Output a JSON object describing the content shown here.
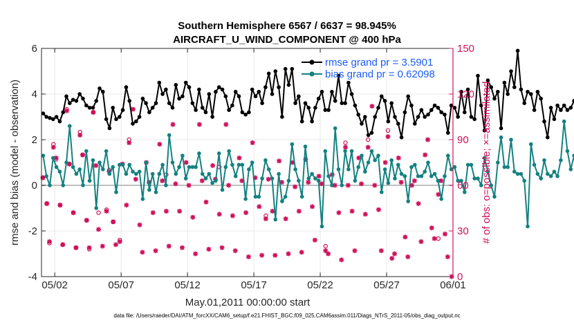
{
  "chart_data": {
    "type": "line",
    "title_line1": "Southern Hemisphere 6567 / 6637 = 98.945%",
    "title_line2": "AIRCRAFT_U_WIND_COMPONENT @ 400 hPa",
    "ylabel": "rmse and bias (model - observation)",
    "y2label": "# of obs: o=possible; ×=assimilated",
    "xlabel": "May.01,2011 00:00:00 start",
    "footnote": "data file: /Users/raeder/DAI/ATM_forcXX/CAM6_setup/f.e21.FHIST_BGC.f09_025.CAM6assim.011/Diags_NTrS_2011-05/obs_diag_output.nc",
    "xlim": [
      0,
      31
    ],
    "ylim": [
      -4,
      6
    ],
    "y2lim": [
      0,
      150
    ],
    "xticks": [
      {
        "day": 1,
        "label": "05/02"
      },
      {
        "day": 6,
        "label": "05/07"
      },
      {
        "day": 11,
        "label": "05/12"
      },
      {
        "day": 16,
        "label": "05/17"
      },
      {
        "day": 21,
        "label": "05/22"
      },
      {
        "day": 26,
        "label": "05/27"
      },
      {
        "day": 31,
        "label": "06/01"
      }
    ],
    "yticks": [
      {
        "value": -4,
        "label": "-4"
      },
      {
        "value": -2,
        "label": "-2"
      },
      {
        "value": 0,
        "label": "0"
      },
      {
        "value": 2,
        "label": "2"
      },
      {
        "value": 4,
        "label": "4"
      },
      {
        "value": 6,
        "label": "6"
      }
    ],
    "y2ticks": [
      {
        "value": 0,
        "label": "0"
      },
      {
        "value": 30,
        "label": "30"
      },
      {
        "value": 60,
        "label": "60"
      },
      {
        "value": 90,
        "label": "90"
      },
      {
        "value": 120,
        "label": "120"
      },
      {
        "value": 150,
        "label": "150"
      }
    ],
    "time_step_days": 0.25,
    "time_start_day": 0.125,
    "series": [
      {
        "name": "rmse",
        "legend": "rmse grand pr = 3.5901",
        "color": "#000000",
        "values": [
          3.15,
          3.0,
          2.95,
          2.9,
          3.0,
          2.8,
          3.2,
          3.9,
          3.6,
          3.75,
          3.7,
          4.0,
          3.8,
          3.5,
          3.4,
          3.4,
          3.7,
          4.25,
          4.1,
          2.9,
          2.5,
          3.4,
          2.9,
          3.0,
          3.3,
          4.3,
          3.7,
          2.7,
          2.8,
          3.0,
          3.8,
          3.6,
          3.2,
          3.4,
          3.6,
          4.5,
          4.0,
          4.2,
          3.6,
          3.4,
          4.4,
          3.8,
          3.9,
          4.5,
          4.3,
          3.6,
          3.3,
          4.2,
          3.4,
          3.2,
          4.0,
          3.0,
          4.1,
          4.3,
          4.2,
          3.9,
          3.3,
          3.5,
          4.1,
          3.9,
          3.2,
          3.1,
          3.2,
          4.2,
          3.9,
          4.1,
          3.6,
          4.3,
          4.9,
          4.0,
          5.0,
          4.3,
          3.0,
          5.1,
          4.4,
          5.1,
          3.6,
          3.9,
          2.8,
          3.6,
          3.4,
          2.8,
          3.4,
          3.8,
          4.1,
          3.3,
          3.3,
          4.1,
          3.7,
          4.8,
          3.6,
          3.6,
          4.5,
          4.0,
          3.5,
          3.1,
          2.7,
          3.0,
          2.2,
          2.3,
          3.0,
          3.4,
          3.9,
          3.7,
          2.8,
          3.6,
          3.0,
          2.7,
          2.1,
          3.2,
          3.9,
          3.5,
          2.7,
          3.0,
          3.3,
          3.0,
          3.1,
          3.3,
          3.5,
          3.4,
          3.2,
          3.1,
          2.3,
          3.5,
          3.4,
          3.0,
          4.1,
          3.2,
          4.2,
          3.0,
          2.9,
          4.8,
          3.5,
          2.4,
          4.6,
          4.3,
          3.8,
          4.1,
          2.5,
          4.5,
          4.0,
          5.0,
          4.3,
          5.9,
          4.2,
          3.6,
          4.1,
          4.0,
          3.3,
          4.1,
          3.8,
          2.8,
          2.1,
          3.4,
          2.9,
          3.5,
          3.3,
          3.5,
          3.3,
          3.4,
          3.7,
          3.5,
          3.6,
          3.3,
          3.6,
          3.3,
          3.5,
          3.5,
          4.4,
          4.0,
          3.1,
          3.6,
          4.5,
          3.3,
          3.5,
          3.8,
          3.0,
          4.3,
          3.4,
          3.4,
          3.8,
          4.2,
          3.5,
          4.4
        ]
      },
      {
        "name": "bias",
        "legend": "bias grand pr = 0.62098",
        "color": "#138180",
        "values": [
          1.3,
          0.4,
          0.0,
          1.2,
          0.8,
          0.6,
          0.0,
          1.0,
          2.6,
          0.8,
          0.5,
          0.7,
          0.0,
          1.5,
          0.2,
          1.1,
          -1.0,
          1.0,
          0.7,
          1.5,
          0.5,
          0.8,
          -0.3,
          0.9,
          0.9,
          0.5,
          0.9,
          0.6,
          0.5,
          0.6,
          -0.6,
          1.0,
          -0.2,
          0.5,
          -0.3,
          0.5,
          0.9,
          0.0,
          2.2,
          1.0,
          0.5,
          0.8,
          1.3,
          0.3,
          0.8,
          0.8,
          0.8,
          1.4,
          0.5,
          0.3,
          0.5,
          0.1,
          0.2,
          1.4,
          -0.2,
          0.8,
          1.5,
          0.9,
          0.4,
          0.9,
          0.9,
          -0.6,
          0.7,
          1.0,
          -0.5,
          -0.5,
          0.3,
          1.1,
          0.7,
          0.3,
          -1.5,
          0.5,
          -0.7,
          -0.5,
          0.2,
          1.8,
          0.7,
          0.2,
          -0.5,
          1.7,
          0.3,
          0.5,
          0.3,
          0.2,
          -1.8,
          1.5,
          0.4,
          0.0,
          2.5,
          0.7,
          0.0,
          1.5,
          0.7,
          1.5,
          0.2,
          0.8,
          1.3,
          0.6,
          1.0,
          1.5,
          1.1,
          1.3,
          -0.3,
          0.7,
          0.1,
          1.1,
          0.3,
          0.9,
          0.5,
          0.4,
          -0.7,
          0.8,
          0.9,
          0.4,
          0.4,
          0.6,
          1.0,
          0.4,
          0.5,
          0.2,
          -0.6,
          0.4,
          1.3,
          0.7,
          0.8,
          0.2,
          0.2,
          -0.3,
          0.9,
          0.9,
          0.3,
          0.3,
          0.0,
          1.2,
          0.6,
          0.0,
          -0.5,
          1.0,
          2.1,
          0.8,
          0.8,
          2.0,
          0.6,
          0.5,
          0.5,
          0.2,
          -1.8,
          1.8,
          0.9,
          0.5,
          0.3,
          1.1,
          0.5,
          0.4,
          0.6,
          0.4,
          1.1,
          2.8,
          1.5,
          0.7,
          1.3,
          0.1,
          0.5,
          1.0,
          1.3,
          0.6,
          0.4,
          1.0,
          0.6,
          1.5,
          2.2,
          0.4,
          0.4,
          1.1,
          1.5,
          0.5,
          1.2,
          0.9,
          0.4,
          0.5,
          0.7,
          0.7,
          1.7,
          0.6,
          1.0,
          0.7,
          0.4,
          0.6,
          1.0,
          1.6,
          0.8,
          0.4
        ]
      }
    ],
    "obs_possible": [
      {
        "day": 0.1,
        "count": 65
      },
      {
        "day": 0.4,
        "count": 48
      },
      {
        "day": 0.6,
        "count": 22
      },
      {
        "day": 0.9,
        "count": 87
      },
      {
        "day": 1.1,
        "count": 77
      },
      {
        "day": 1.4,
        "count": 47
      },
      {
        "day": 1.6,
        "count": 21
      },
      {
        "day": 1.9,
        "count": 110
      },
      {
        "day": 2.1,
        "count": 74
      },
      {
        "day": 2.4,
        "count": 42
      },
      {
        "day": 2.6,
        "count": 19
      },
      {
        "day": 2.9,
        "count": 95
      },
      {
        "day": 3.1,
        "count": 80
      },
      {
        "day": 3.4,
        "count": 37
      },
      {
        "day": 3.6,
        "count": 18
      },
      {
        "day": 3.9,
        "count": 108
      },
      {
        "day": 4.3,
        "count": 42
      },
      {
        "day": 4.9,
        "count": 44
      },
      {
        "day": 5.1,
        "count": 70
      },
      {
        "day": 5.4,
        "count": 36
      },
      {
        "day": 5.9,
        "count": 24
      },
      {
        "day": 6.6,
        "count": 90
      },
      {
        "day": 9.4,
        "count": 67
      },
      {
        "day": 13.4,
        "count": 72
      },
      {
        "day": 16.9,
        "count": 40
      },
      {
        "day": 21.4,
        "count": 20
      },
      {
        "day": 22.9,
        "count": 88
      },
      {
        "day": 24.6,
        "count": 90
      },
      {
        "day": 26.1,
        "count": 96
      },
      {
        "day": 29.9,
        "count": 25
      }
    ],
    "obs_assimilated": [
      {
        "day": 0.1,
        "count": 65
      },
      {
        "day": 0.4,
        "count": 48
      },
      {
        "day": 0.6,
        "count": 23
      },
      {
        "day": 0.9,
        "count": 85
      },
      {
        "day": 1.1,
        "count": 78
      },
      {
        "day": 1.4,
        "count": 47
      },
      {
        "day": 1.6,
        "count": 21
      },
      {
        "day": 1.9,
        "count": 109
      },
      {
        "day": 2.1,
        "count": 74
      },
      {
        "day": 2.4,
        "count": 42
      },
      {
        "day": 2.6,
        "count": 19
      },
      {
        "day": 2.9,
        "count": 93
      },
      {
        "day": 3.1,
        "count": 80
      },
      {
        "day": 3.4,
        "count": 37
      },
      {
        "day": 3.6,
        "count": 19
      },
      {
        "day": 3.9,
        "count": 108
      },
      {
        "day": 4.1,
        "count": 73
      },
      {
        "day": 4.3,
        "count": 31
      },
      {
        "day": 4.6,
        "count": 20
      },
      {
        "day": 4.9,
        "count": 43
      },
      {
        "day": 5.1,
        "count": 69
      },
      {
        "day": 5.4,
        "count": 36
      },
      {
        "day": 5.6,
        "count": 21
      },
      {
        "day": 5.9,
        "count": 23
      },
      {
        "day": 6.1,
        "count": 74
      },
      {
        "day": 6.4,
        "count": 47
      },
      {
        "day": 6.6,
        "count": 88
      },
      {
        "day": 6.9,
        "count": 110
      },
      {
        "day": 7.1,
        "count": 64
      },
      {
        "day": 7.4,
        "count": 34
      },
      {
        "day": 7.6,
        "count": 16
      },
      {
        "day": 7.9,
        "count": 75
      },
      {
        "day": 8.1,
        "count": 62
      },
      {
        "day": 8.4,
        "count": 42
      },
      {
        "day": 8.6,
        "count": 17
      },
      {
        "day": 8.9,
        "count": 87
      },
      {
        "day": 9.1,
        "count": 63
      },
      {
        "day": 9.4,
        "count": 43
      },
      {
        "day": 9.6,
        "count": 20
      },
      {
        "day": 9.9,
        "count": 100
      },
      {
        "day": 10.1,
        "count": 61
      },
      {
        "day": 10.4,
        "count": 43
      },
      {
        "day": 10.6,
        "count": 19
      },
      {
        "day": 10.9,
        "count": 75
      },
      {
        "day": 11.1,
        "count": 60
      },
      {
        "day": 11.4,
        "count": 39
      },
      {
        "day": 11.6,
        "count": 15
      },
      {
        "day": 11.9,
        "count": 100
      },
      {
        "day": 12.1,
        "count": 63
      },
      {
        "day": 12.4,
        "count": 49
      },
      {
        "day": 12.6,
        "count": 18
      },
      {
        "day": 12.9,
        "count": 73
      },
      {
        "day": 13.1,
        "count": 64
      },
      {
        "day": 13.4,
        "count": 41
      },
      {
        "day": 13.6,
        "count": 19
      },
      {
        "day": 13.9,
        "count": 100
      },
      {
        "day": 14.1,
        "count": 60
      },
      {
        "day": 14.4,
        "count": 40
      },
      {
        "day": 14.6,
        "count": 17
      },
      {
        "day": 14.9,
        "count": 78
      },
      {
        "day": 15.1,
        "count": 63
      },
      {
        "day": 15.4,
        "count": 42
      },
      {
        "day": 15.6,
        "count": 13
      },
      {
        "day": 15.9,
        "count": 88
      },
      {
        "day": 16.1,
        "count": 65
      },
      {
        "day": 16.4,
        "count": 46
      },
      {
        "day": 16.6,
        "count": 14
      },
      {
        "day": 16.9,
        "count": 38
      },
      {
        "day": 17.1,
        "count": 64
      },
      {
        "day": 17.4,
        "count": 43
      },
      {
        "day": 17.6,
        "count": 14
      },
      {
        "day": 17.9,
        "count": 76
      },
      {
        "day": 18.1,
        "count": 62
      },
      {
        "day": 18.4,
        "count": 38
      },
      {
        "day": 18.6,
        "count": 15
      },
      {
        "day": 18.9,
        "count": 75
      },
      {
        "day": 19.1,
        "count": 59
      },
      {
        "day": 19.4,
        "count": 43
      },
      {
        "day": 19.6,
        "count": 16
      },
      {
        "day": 19.9,
        "count": 77
      },
      {
        "day": 20.1,
        "count": 62
      },
      {
        "day": 20.4,
        "count": 46
      },
      {
        "day": 20.6,
        "count": 24
      },
      {
        "day": 20.9,
        "count": 66
      },
      {
        "day": 21.1,
        "count": 61
      },
      {
        "day": 21.4,
        "count": 17
      },
      {
        "day": 21.6,
        "count": 15
      },
      {
        "day": 21.9,
        "count": 67
      },
      {
        "day": 22.1,
        "count": 60
      },
      {
        "day": 22.4,
        "count": 42
      },
      {
        "day": 22.6,
        "count": 11
      },
      {
        "day": 22.9,
        "count": 85
      },
      {
        "day": 23.1,
        "count": 60
      },
      {
        "day": 23.4,
        "count": 43
      },
      {
        "day": 23.6,
        "count": 17
      },
      {
        "day": 23.9,
        "count": 78
      },
      {
        "day": 24.1,
        "count": 61
      },
      {
        "day": 24.4,
        "count": 41
      },
      {
        "day": 24.6,
        "count": 85
      },
      {
        "day": 24.9,
        "count": 112
      },
      {
        "day": 25.1,
        "count": 60
      },
      {
        "day": 25.4,
        "count": 44
      },
      {
        "day": 25.6,
        "count": 17
      },
      {
        "day": 25.9,
        "count": 75
      },
      {
        "day": 26.1,
        "count": 92
      },
      {
        "day": 26.4,
        "count": 12
      },
      {
        "day": 26.6,
        "count": 15
      },
      {
        "day": 26.9,
        "count": 78
      },
      {
        "day": 27.1,
        "count": 62
      },
      {
        "day": 27.4,
        "count": 26
      },
      {
        "day": 27.6,
        "count": 13
      },
      {
        "day": 27.9,
        "count": 60
      },
      {
        "day": 28.1,
        "count": 63
      },
      {
        "day": 28.4,
        "count": 48
      },
      {
        "day": 28.6,
        "count": 23
      },
      {
        "day": 28.9,
        "count": 80
      },
      {
        "day": 29.1,
        "count": 90
      },
      {
        "day": 29.4,
        "count": 32
      },
      {
        "day": 29.6,
        "count": 25
      },
      {
        "day": 29.9,
        "count": 54
      },
      {
        "day": 30.1,
        "count": 63
      },
      {
        "day": 30.4,
        "count": 28
      },
      {
        "day": 30.6,
        "count": 13
      },
      {
        "day": 30.9,
        "count": 0
      }
    ],
    "colors": {
      "rmse": "#000000",
      "bias": "#138180",
      "obs": "#d0105a",
      "zero_line": "#bfbfbf",
      "grid": "#e8e8e8",
      "legend_text": "#1a5cff"
    }
  }
}
